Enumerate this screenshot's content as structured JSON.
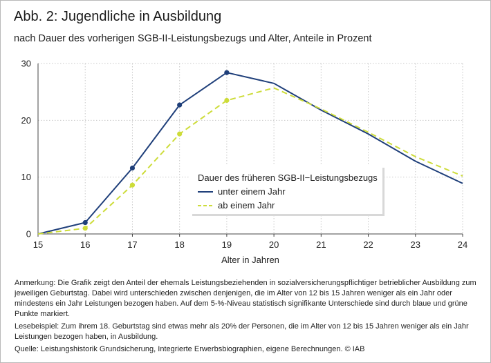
{
  "figure": {
    "title": "Abb. 2: Jugendliche in Ausbildung",
    "subtitle": "nach Dauer des vorherigen SGB-II-Leistungsbezugs und Alter, Anteile in Prozent"
  },
  "notes": {
    "anmerkung": "Anmerkung: Die Grafik zeigt den Anteil der ehemals Leistungsbeziehenden in sozialversicherungspflichtiger betrieblicher Ausbildung zum jeweiligen Geburtstag. Dabei wird unterschieden zwischen denjenigen, die im Alter von 12 bis 15 Jahren weniger als ein Jahr oder mindestens ein Jahr Leistungen bezogen haben. Auf dem 5-%-Niveau statistisch signifikante Unterschiede sind durch blaue und grüne Punkte markiert.",
    "lesebeispiel": "Lesebeispiel: Zum ihrem 18. Geburtstag sind etwas mehr als 20% der Personen, die im Alter von 12 bis 15 Jahren weniger als ein Jahr Leistungen bezogen haben, in Ausbildung.",
    "quelle": "Quelle: Leistungshistorik Grundsicherung, Integrierte Erwerbsbiographien, eigene Berechnungen. © IAB"
  },
  "chart_data": {
    "type": "line",
    "xlabel": "Alter in Jahren",
    "ylabel": "",
    "x": [
      15,
      16,
      17,
      18,
      19,
      20,
      21,
      22,
      23,
      24
    ],
    "xlim": [
      15,
      24
    ],
    "ylim": [
      0,
      30
    ],
    "yticks": [
      0,
      10,
      20,
      30
    ],
    "grid": "vertical dotted",
    "legend_title": "Dauer des früheren SGB-II−Leistungsbezugs",
    "legend_position": "center-right",
    "series": [
      {
        "name": "unter einem Jahr",
        "color": "#1f3f7a",
        "dash": "solid",
        "values": [
          0,
          2.0,
          11.6,
          22.7,
          28.4,
          26.5,
          21.8,
          17.6,
          12.8,
          8.9
        ],
        "marked": [
          false,
          true,
          true,
          true,
          true,
          false,
          false,
          false,
          false,
          false
        ]
      },
      {
        "name": "ab einem Jahr",
        "color": "#cddc39",
        "dash": "dashed",
        "values": [
          0,
          1.0,
          8.6,
          17.6,
          23.5,
          25.7,
          22.0,
          17.9,
          13.6,
          10.2
        ],
        "marked": [
          false,
          true,
          true,
          true,
          true,
          false,
          false,
          false,
          false,
          false
        ]
      }
    ]
  }
}
